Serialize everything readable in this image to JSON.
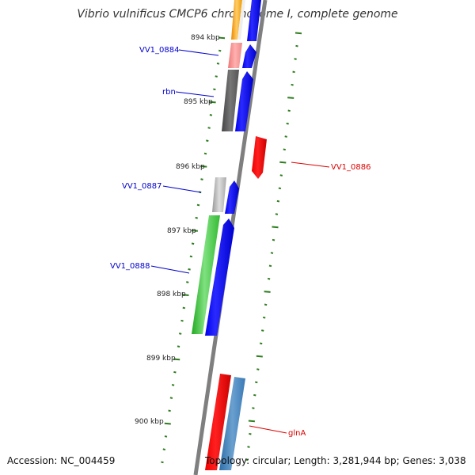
{
  "title": "Vibrio vulnificus CMCP6 chromosome I, complete genome",
  "footer": {
    "accession": "Accession: NC_004459",
    "topology": "Topology: circular; Length: 3,281,944 bp; Genes: 3,038"
  },
  "colors": {
    "backbone": "#7f7f7f",
    "tick": "#2e7d1f",
    "forward_label": "#0000cc",
    "reverse_label": "#dd0000"
  },
  "kbp_labels": [
    "894 kbp",
    "895 kbp",
    "896 kbp",
    "897 kbp",
    "898 kbp",
    "899 kbp",
    "900 kbp"
  ],
  "gene_labels": {
    "vv1_0884": "VV1_0884",
    "rbn": "rbn",
    "vv1_0887": "VV1_0887",
    "vv1_0888": "VV1_0888",
    "vv1_0886": "VV1_0886",
    "glnA": "glnA"
  }
}
